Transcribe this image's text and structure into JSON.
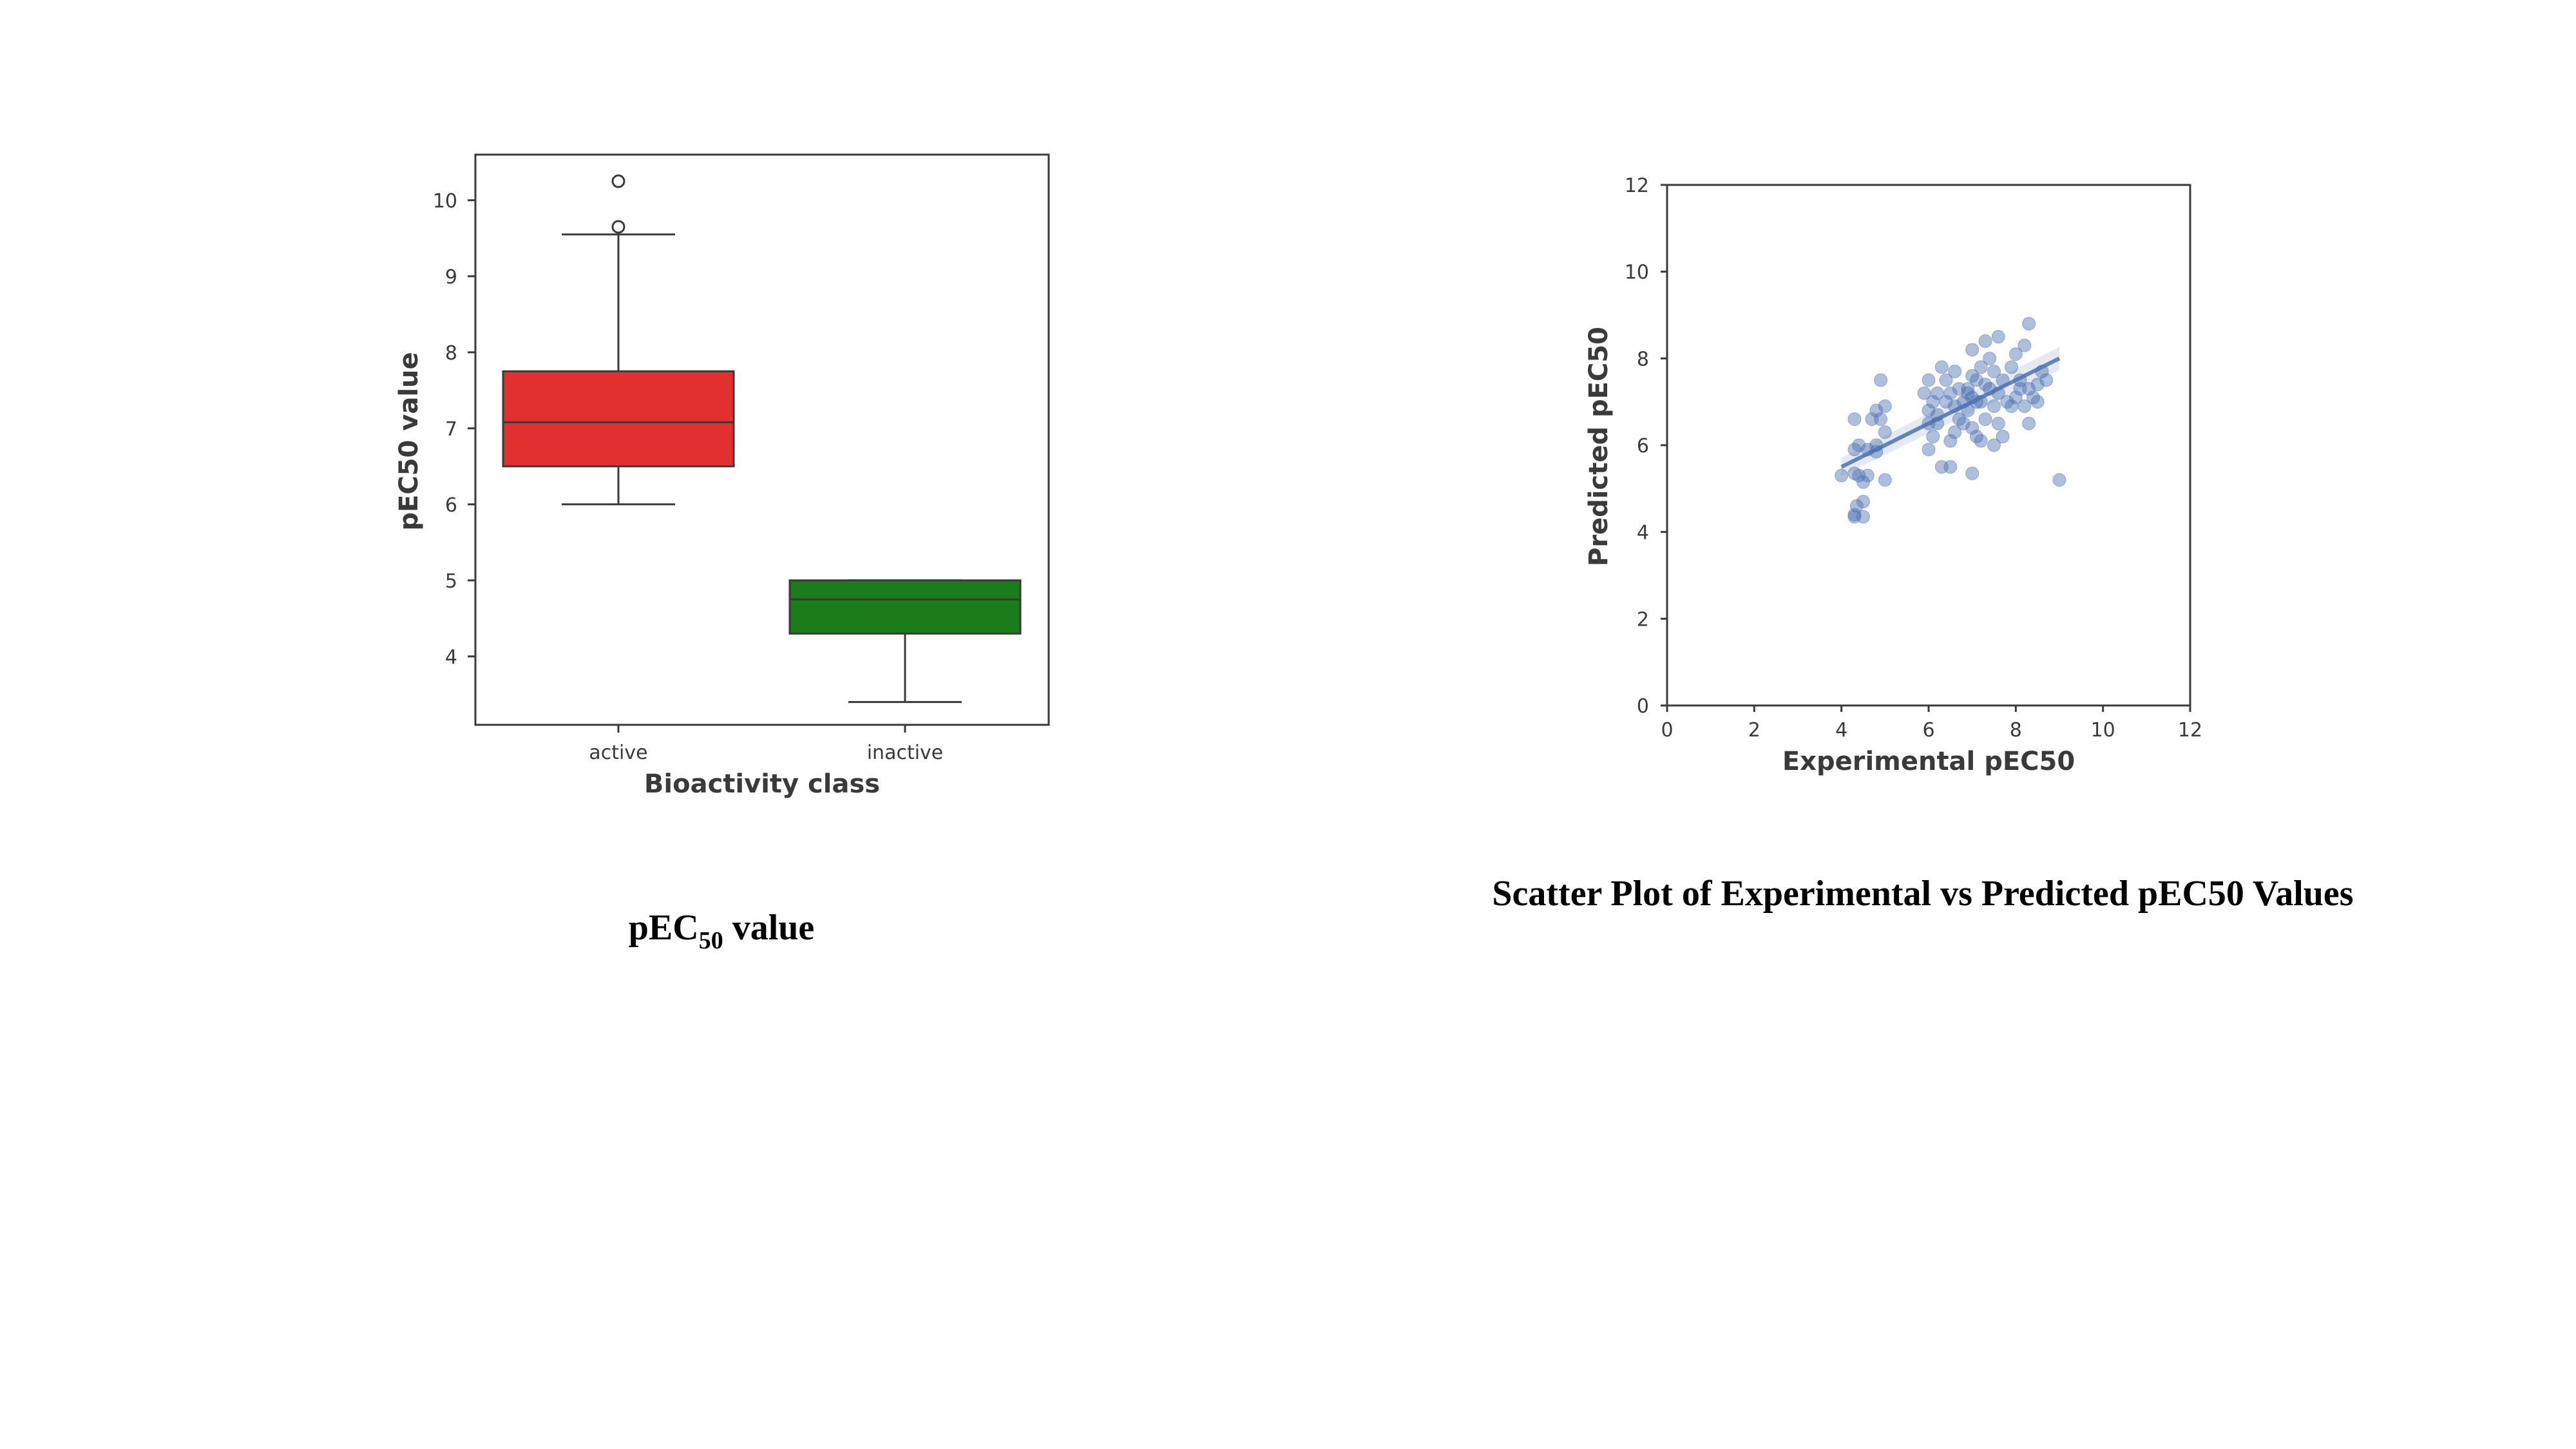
{
  "captions": {
    "left_main": "pEC",
    "left_sub": "50",
    "left_rest": " value",
    "right": "Scatter Plot of Experimental vs Predicted pEC50 Values"
  },
  "chart_data": [
    {
      "type": "box",
      "title": "",
      "xlabel": "Bioactivity class",
      "ylabel": "pEC50 value",
      "categories": [
        "active",
        "inactive"
      ],
      "ylim": [
        3.1,
        10.6
      ],
      "yticks": [
        4,
        5,
        6,
        7,
        8,
        9,
        10
      ],
      "colors": {
        "active": "#e32f2f",
        "inactive": "#1a7d1a"
      },
      "boxes": [
        {
          "category": "active",
          "whisker_low": 6.0,
          "q1": 6.5,
          "median": 7.08,
          "q3": 7.75,
          "whisker_high": 9.55,
          "outliers": [
            9.65,
            10.25
          ]
        },
        {
          "category": "inactive",
          "whisker_low": 3.4,
          "q1": 4.3,
          "median": 4.75,
          "q3": 5.0,
          "whisker_high": 5.0,
          "outliers": []
        }
      ]
    },
    {
      "type": "scatter",
      "title": "",
      "xlabel": "Experimental pEC50",
      "ylabel": "Predicted pEC50",
      "xlim": [
        0,
        12
      ],
      "ylim": [
        0,
        12
      ],
      "xticks": [
        0,
        2,
        4,
        6,
        8,
        10,
        12
      ],
      "yticks": [
        0,
        2,
        4,
        6,
        8,
        10,
        12
      ],
      "color": "#4c72b0",
      "regression": {
        "x": [
          4.0,
          9.0
        ],
        "y": [
          5.5,
          8.0
        ]
      },
      "points": [
        [
          4.0,
          5.3
        ],
        [
          4.3,
          4.35
        ],
        [
          4.3,
          4.4
        ],
        [
          4.35,
          4.6
        ],
        [
          4.5,
          4.35
        ],
        [
          4.3,
          5.35
        ],
        [
          4.4,
          5.3
        ],
        [
          4.6,
          5.3
        ],
        [
          4.5,
          5.15
        ],
        [
          4.3,
          5.9
        ],
        [
          4.4,
          6.0
        ],
        [
          4.6,
          5.9
        ],
        [
          4.8,
          5.85
        ],
        [
          4.3,
          6.6
        ],
        [
          4.7,
          6.6
        ],
        [
          4.8,
          6.8
        ],
        [
          5.0,
          6.9
        ],
        [
          4.9,
          7.5
        ],
        [
          5.0,
          6.3
        ],
        [
          4.9,
          6.6
        ],
        [
          5.0,
          5.2
        ],
        [
          4.5,
          4.7
        ],
        [
          4.8,
          6.0
        ],
        [
          6.0,
          7.5
        ],
        [
          6.1,
          7.0
        ],
        [
          6.0,
          6.8
        ],
        [
          6.2,
          6.5
        ],
        [
          6.1,
          6.2
        ],
        [
          6.0,
          5.9
        ],
        [
          6.3,
          5.5
        ],
        [
          6.5,
          5.5
        ],
        [
          6.2,
          7.2
        ],
        [
          6.3,
          7.8
        ],
        [
          6.4,
          7.5
        ],
        [
          6.5,
          7.2
        ],
        [
          6.6,
          6.9
        ],
        [
          6.7,
          6.6
        ],
        [
          6.8,
          6.5
        ],
        [
          6.5,
          6.1
        ],
        [
          6.6,
          6.3
        ],
        [
          6.8,
          7.0
        ],
        [
          6.9,
          7.3
        ],
        [
          7.0,
          7.6
        ],
        [
          7.1,
          7.5
        ],
        [
          7.0,
          7.1
        ],
        [
          6.9,
          6.8
        ],
        [
          7.0,
          6.4
        ],
        [
          7.1,
          6.2
        ],
        [
          7.0,
          5.35
        ],
        [
          7.2,
          6.1
        ],
        [
          7.3,
          6.6
        ],
        [
          7.2,
          7.0
        ],
        [
          7.3,
          7.4
        ],
        [
          7.2,
          7.8
        ],
        [
          7.4,
          8.0
        ],
        [
          7.5,
          7.7
        ],
        [
          7.4,
          7.3
        ],
        [
          7.5,
          6.9
        ],
        [
          7.6,
          6.5
        ],
        [
          7.5,
          6.0
        ],
        [
          7.7,
          6.2
        ],
        [
          7.8,
          7.0
        ],
        [
          7.7,
          7.5
        ],
        [
          7.9,
          7.8
        ],
        [
          8.0,
          8.1
        ],
        [
          8.2,
          8.3
        ],
        [
          8.3,
          8.8
        ],
        [
          8.1,
          7.5
        ],
        [
          8.0,
          7.1
        ],
        [
          8.2,
          6.9
        ],
        [
          8.3,
          6.5
        ],
        [
          8.4,
          7.1
        ],
        [
          8.5,
          7.4
        ],
        [
          8.6,
          7.7
        ],
        [
          8.7,
          7.5
        ],
        [
          8.5,
          7.0
        ],
        [
          8.3,
          7.3
        ],
        [
          7.6,
          8.5
        ],
        [
          7.3,
          8.4
        ],
        [
          7.1,
          7.0
        ],
        [
          6.7,
          7.3
        ],
        [
          6.4,
          7.0
        ],
        [
          6.2,
          6.7
        ],
        [
          6.0,
          6.5
        ],
        [
          5.9,
          7.2
        ],
        [
          6.9,
          7.2
        ],
        [
          7.6,
          7.2
        ],
        [
          7.9,
          6.9
        ],
        [
          8.1,
          7.3
        ],
        [
          6.6,
          7.7
        ],
        [
          7.0,
          8.2
        ],
        [
          9.0,
          5.2
        ]
      ]
    }
  ]
}
